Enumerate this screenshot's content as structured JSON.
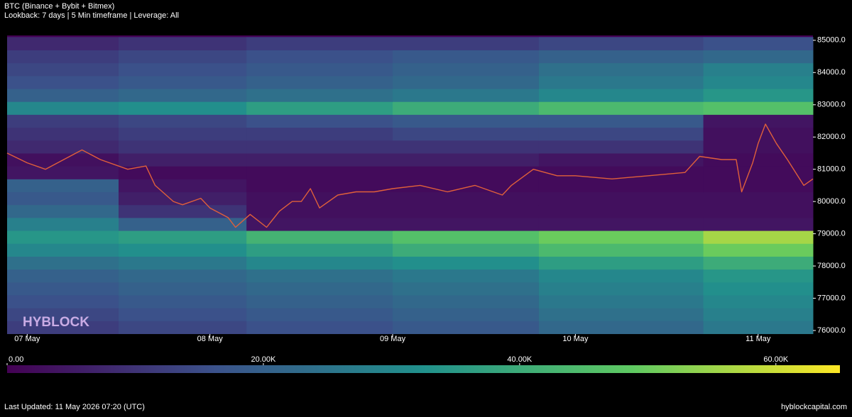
{
  "chart_data": {
    "type": "heatmap",
    "title": "BTC (Binance + Bybit + Bitmex)",
    "subtitle": "Lookback: 7 days | 5 Min timeframe | Leverage: All",
    "watermark": "HYBLOCK",
    "footnote": "Last Updated: 11 May 2026 07:20 (UTC)",
    "source": "hyblockcapital.com",
    "colormap": "viridis",
    "xlim": [
      -0.11,
      4.3
    ],
    "xticks": [
      {
        "value": 0,
        "label": "07 May"
      },
      {
        "value": 1,
        "label": "08 May"
      },
      {
        "value": 2,
        "label": "09 May"
      },
      {
        "value": 3,
        "label": "10 May"
      },
      {
        "value": 4,
        "label": "11 May"
      }
    ],
    "ylim": [
      75890,
      85150
    ],
    "yticks": [
      {
        "value": 76000,
        "label": "76000.0"
      },
      {
        "value": 77000,
        "label": "77000.0"
      },
      {
        "value": 78000,
        "label": "78000.0"
      },
      {
        "value": 79000,
        "label": "79000.0"
      },
      {
        "value": 80000,
        "label": "80000.0"
      },
      {
        "value": 81000,
        "label": "81000.0"
      },
      {
        "value": 82000,
        "label": "82000.0"
      },
      {
        "value": 83000,
        "label": "83000.0"
      },
      {
        "value": 84000,
        "label": "84000.0"
      },
      {
        "value": 85000,
        "label": "85000.0"
      }
    ],
    "clim": [
      0,
      65000
    ],
    "cticks": [
      {
        "value": 0,
        "label": "0.00"
      },
      {
        "value": 20000,
        "label": "20.00K"
      },
      {
        "value": 40000,
        "label": "40.00K"
      },
      {
        "value": 60000,
        "label": "60.00K"
      }
    ],
    "xbins": [
      -0.11,
      0.5,
      1.2,
      2.0,
      2.8,
      3.7,
      4.3
    ],
    "ybins": [
      75900,
      76300,
      76700,
      77100,
      77500,
      77900,
      78300,
      78700,
      79100,
      79500,
      79900,
      80300,
      80700,
      81100,
      81500,
      81900,
      82300,
      82700,
      83100,
      83500,
      83900,
      84300,
      84700,
      85100
    ],
    "z": [
      [
        12000,
        14000,
        16000,
        18000,
        22000,
        26000
      ],
      [
        14000,
        16000,
        18000,
        20000,
        24000,
        28000
      ],
      [
        16000,
        18000,
        20000,
        22000,
        26000,
        30000
      ],
      [
        18000,
        20000,
        22000,
        24000,
        28000,
        32000
      ],
      [
        20000,
        22000,
        24000,
        26000,
        30000,
        34000
      ],
      [
        24000,
        26000,
        30000,
        32000,
        36000,
        40000
      ],
      [
        30000,
        32000,
        36000,
        40000,
        44000,
        50000
      ],
      [
        34000,
        36000,
        42000,
        46000,
        50000,
        56000
      ],
      [
        28000,
        20000,
        4000,
        4000,
        4000,
        4000
      ],
      [
        22000,
        10000,
        3000,
        3000,
        3000,
        3000
      ],
      [
        18000,
        6000,
        3000,
        3000,
        3000,
        3000
      ],
      [
        20000,
        4000,
        2000,
        2000,
        2000,
        2000
      ],
      [
        4000,
        2000,
        2000,
        2000,
        2000,
        2000
      ],
      [
        3000,
        6000,
        6000,
        6000,
        4000,
        2000
      ],
      [
        8000,
        10000,
        10000,
        10000,
        10000,
        3000
      ],
      [
        10000,
        12000,
        12000,
        14000,
        14000,
        3000
      ],
      [
        12000,
        14000,
        16000,
        18000,
        18000,
        4000
      ],
      [
        30000,
        32000,
        36000,
        40000,
        44000,
        46000
      ],
      [
        20000,
        22000,
        24000,
        26000,
        30000,
        34000
      ],
      [
        16000,
        18000,
        20000,
        22000,
        26000,
        30000
      ],
      [
        14000,
        16000,
        18000,
        20000,
        24000,
        28000
      ],
      [
        12000,
        14000,
        16000,
        18000,
        20000,
        22000
      ],
      [
        8000,
        10000,
        12000,
        12000,
        14000,
        16000
      ]
    ],
    "price": {
      "color": "#e0603a",
      "x": [
        -0.11,
        0.0,
        0.1,
        0.2,
        0.3,
        0.4,
        0.55,
        0.65,
        0.7,
        0.8,
        0.85,
        0.95,
        1.0,
        1.1,
        1.14,
        1.22,
        1.31,
        1.38,
        1.45,
        1.5,
        1.55,
        1.6,
        1.7,
        1.8,
        1.9,
        2.0,
        2.15,
        2.3,
        2.45,
        2.6,
        2.65,
        2.77,
        2.9,
        3.0,
        3.2,
        3.4,
        3.6,
        3.68,
        3.8,
        3.88,
        3.91,
        3.97,
        4.0,
        4.04,
        4.1,
        4.16,
        4.25,
        4.3
      ],
      "values": [
        81500,
        81200,
        81000,
        81300,
        81600,
        81300,
        81000,
        81100,
        80500,
        80000,
        79900,
        80100,
        79800,
        79500,
        79200,
        79600,
        79200,
        79700,
        80000,
        80000,
        80400,
        79800,
        80200,
        80300,
        80300,
        80400,
        80500,
        80300,
        80500,
        80200,
        80500,
        81000,
        80800,
        80800,
        80700,
        80800,
        80900,
        81400,
        81300,
        81300,
        80300,
        81200,
        81800,
        82400,
        81800,
        81300,
        80500,
        80700
      ]
    }
  }
}
